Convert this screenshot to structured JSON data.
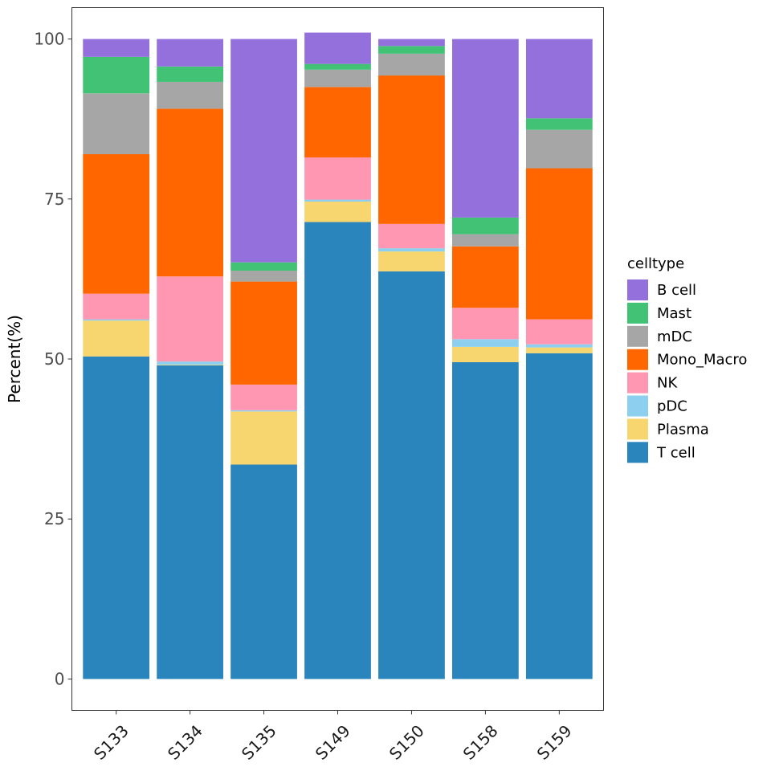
{
  "chart_data": {
    "type": "bar",
    "stacked": true,
    "title": "",
    "xlabel": "",
    "ylabel": "Percent(%)",
    "ylim": [
      -4.9,
      104.9
    ],
    "yticks": [
      0,
      25,
      50,
      75,
      100
    ],
    "ytick_labels": [
      "0",
      "25",
      "50",
      "75",
      "100"
    ],
    "categories": [
      "S133",
      "S134",
      "S135",
      "S149",
      "S150",
      "S158",
      "S159"
    ],
    "grid": false,
    "legend": {
      "title": "celltype",
      "position": "right",
      "entries": [
        "B cell",
        "Mast",
        "mDC",
        "Mono_Macro",
        "NK",
        "pDC",
        "Plasma",
        "T cell"
      ]
    },
    "stack_order_bottom_to_top": [
      "T cell",
      "Plasma",
      "pDC",
      "NK",
      "Mono_Macro",
      "mDC",
      "Mast",
      "B cell"
    ],
    "series": [
      {
        "name": "T cell",
        "color": "#2B85BD",
        "values": [
          50.4,
          49.0,
          33.5,
          71.4,
          63.7,
          49.5,
          50.9
        ]
      },
      {
        "name": "Plasma",
        "color": "#F7D56F",
        "values": [
          5.6,
          0.1,
          8.3,
          3.2,
          3.1,
          2.4,
          0.9
        ]
      },
      {
        "name": "pDC",
        "color": "#8CCFEE",
        "values": [
          0.2,
          0.5,
          0.2,
          0.3,
          0.5,
          1.2,
          0.5
        ]
      },
      {
        "name": "NK",
        "color": "#FF97B2",
        "values": [
          4.0,
          13.3,
          4.0,
          6.6,
          3.8,
          4.9,
          3.9
        ]
      },
      {
        "name": "Mono_Macro",
        "color": "#FF6600",
        "values": [
          21.8,
          26.2,
          16.1,
          11.0,
          23.2,
          9.6,
          23.6
        ]
      },
      {
        "name": "mDC",
        "color": "#A6A6A6",
        "values": [
          9.5,
          4.2,
          1.7,
          2.7,
          3.4,
          1.9,
          6.0
        ]
      },
      {
        "name": "Mast",
        "color": "#42C274",
        "values": [
          5.7,
          2.4,
          1.3,
          0.9,
          1.2,
          2.6,
          1.8
        ]
      },
      {
        "name": "B cell",
        "color": "#9370DB",
        "values": [
          2.8,
          4.3,
          34.9,
          4.9,
          1.1,
          27.9,
          12.4
        ]
      }
    ]
  }
}
